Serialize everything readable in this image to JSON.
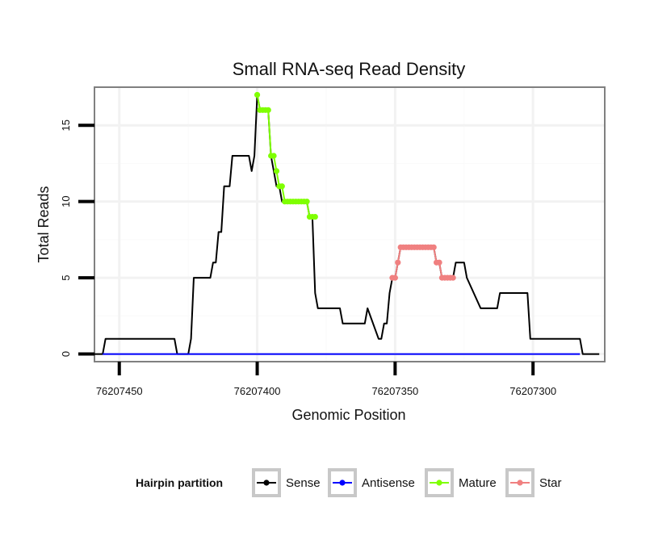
{
  "chart_data": {
    "type": "line",
    "title": "Small RNA-seq Read Density",
    "xlabel": "Genomic Position",
    "ylabel": "Total Reads",
    "x_reversed": true,
    "xlim": [
      76207459,
      76207274
    ],
    "ylim": [
      -0.5,
      17.5
    ],
    "xticks": [
      76207450,
      76207400,
      76207350,
      76207300
    ],
    "xtick_labels": [
      "76207450",
      "76207400",
      "76207350",
      "76207300"
    ],
    "yticks": [
      0,
      5,
      10,
      15
    ],
    "ytick_labels": [
      "0",
      "5",
      "10",
      "15"
    ],
    "grid": true,
    "legend": {
      "title": "Hairpin partition",
      "position": "bottom",
      "entries": [
        {
          "label": "Sense",
          "color": "#000000"
        },
        {
          "label": "Antisense",
          "color": "#0000ff"
        },
        {
          "label": "Mature",
          "color": "#7fff00"
        },
        {
          "label": "Star",
          "color": "#f08080"
        }
      ]
    },
    "series": [
      {
        "name": "Sense",
        "color": "#000000",
        "style": "line",
        "x": [
          76207459,
          76207456,
          76207455,
          76207430,
          76207429,
          76207425,
          76207424,
          76207423,
          76207417,
          76207416,
          76207415,
          76207414,
          76207413,
          76207412,
          76207410,
          76207409,
          76207403,
          76207402,
          76207401,
          76207400,
          76207399,
          76207396,
          76207395,
          76207394,
          76207393,
          76207392,
          76207391,
          76207390,
          76207382,
          76207381,
          76207380,
          76207379,
          76207378,
          76207370,
          76207369,
          76207361,
          76207360,
          76207356,
          76207355,
          76207354,
          76207353,
          76207352,
          76207351,
          76207350,
          76207349,
          76207348,
          76207347,
          76207346,
          76207345,
          76207344,
          76207343,
          76207342,
          76207341,
          76207340,
          76207339,
          76207338,
          76207337,
          76207336,
          76207335,
          76207334,
          76207333,
          76207332,
          76207331,
          76207330,
          76207329,
          76207328,
          76207327,
          76207326,
          76207325,
          76207324,
          76207319,
          76207318,
          76207313,
          76207312,
          76207308,
          76207307,
          76207302,
          76207301,
          76207292,
          76207291,
          76207290,
          76207283,
          76207282,
          76207276
        ],
        "y": [
          0,
          0,
          1,
          1,
          0,
          0,
          1,
          5,
          5,
          6,
          6,
          8,
          8,
          11,
          11,
          13,
          13,
          12,
          13,
          17,
          16,
          16,
          13,
          12,
          11,
          11,
          10,
          10,
          10,
          9,
          9,
          4,
          3,
          3,
          2,
          2,
          3,
          1,
          1,
          2,
          2,
          4,
          5,
          5,
          6,
          7,
          7,
          7,
          7,
          7,
          7,
          7,
          7,
          7,
          7,
          7,
          7,
          7,
          6,
          6,
          5,
          5,
          5,
          5,
          5,
          6,
          6,
          6,
          6,
          5,
          3,
          3,
          3,
          4,
          4,
          4,
          4,
          1,
          1,
          1,
          1,
          1,
          0,
          0
        ]
      },
      {
        "name": "Antisense",
        "color": "#0000ff",
        "style": "line",
        "x": [
          76207456,
          76207283
        ],
        "y": [
          0,
          0
        ]
      },
      {
        "name": "Mature",
        "color": "#7fff00",
        "style": "points",
        "x": [
          76207400,
          76207399,
          76207398,
          76207397,
          76207396,
          76207395,
          76207394,
          76207393,
          76207392,
          76207391,
          76207390,
          76207389,
          76207388,
          76207387,
          76207386,
          76207385,
          76207384,
          76207383,
          76207382,
          76207381,
          76207380,
          76207379
        ],
        "y": [
          17,
          16,
          16,
          16,
          16,
          13,
          13,
          12,
          11,
          11,
          10,
          10,
          10,
          10,
          10,
          10,
          10,
          10,
          10,
          9,
          9,
          9
        ]
      },
      {
        "name": "Star",
        "color": "#f08080",
        "style": "points",
        "x": [
          76207351,
          76207350,
          76207349,
          76207348,
          76207347,
          76207346,
          76207345,
          76207344,
          76207343,
          76207342,
          76207341,
          76207340,
          76207339,
          76207338,
          76207337,
          76207336,
          76207335,
          76207334,
          76207333,
          76207332,
          76207331,
          76207330,
          76207329
        ],
        "y": [
          5,
          5,
          6,
          7,
          7,
          7,
          7,
          7,
          7,
          7,
          7,
          7,
          7,
          7,
          7,
          7,
          6,
          6,
          5,
          5,
          5,
          5,
          5
        ]
      }
    ]
  }
}
